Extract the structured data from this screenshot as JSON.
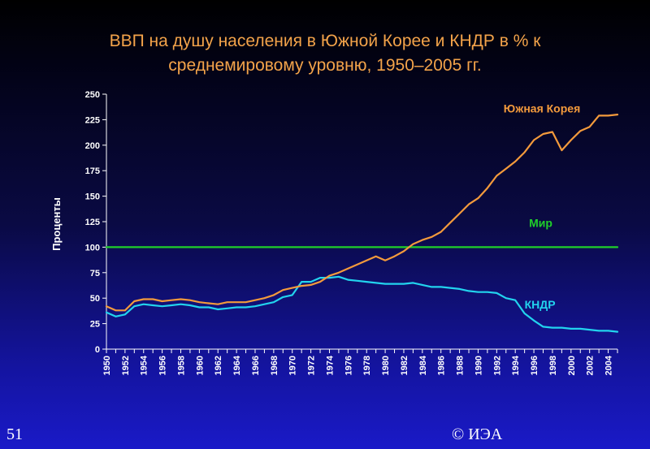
{
  "slide": {
    "title_line1": "ВВП на душу населения в Южной Корее и КНДР в % к",
    "title_line2": "среднемировому уровню, 1950–2005 гг.",
    "page_number": "51",
    "copyright": "© ИЭА"
  },
  "chart_data": {
    "type": "line",
    "title": "ВВП на душу населения в Южной Корее и КНДР в % к среднемировому уровню, 1950–2005 гг.",
    "xlabel": "",
    "ylabel": "Проценты",
    "xlim": [
      1950,
      2005
    ],
    "ylim": [
      0,
      250
    ],
    "yticks": [
      0,
      25,
      50,
      75,
      100,
      125,
      150,
      175,
      200,
      225,
      250
    ],
    "xticks": [
      1950,
      1952,
      1954,
      1956,
      1958,
      1960,
      1962,
      1964,
      1966,
      1968,
      1970,
      1972,
      1974,
      1976,
      1978,
      1980,
      1982,
      1984,
      1986,
      1988,
      1990,
      1992,
      1994,
      1996,
      1998,
      2000,
      2002,
      2004
    ],
    "grid": false,
    "colors": {
      "south_korea": "#f39a3c",
      "north_korea": "#22d3ee",
      "world": "#1fcf2a",
      "axis": "#ffffff",
      "plot_background": "#ffffff"
    },
    "series": [
      {
        "name": "Южная Корея",
        "color": "#f39a3c",
        "x": [
          1950,
          1951,
          1952,
          1953,
          1954,
          1955,
          1956,
          1957,
          1958,
          1959,
          1960,
          1961,
          1962,
          1963,
          1964,
          1965,
          1966,
          1967,
          1968,
          1969,
          1970,
          1971,
          1972,
          1973,
          1974,
          1975,
          1976,
          1977,
          1978,
          1979,
          1980,
          1981,
          1982,
          1983,
          1984,
          1985,
          1986,
          1987,
          1988,
          1989,
          1990,
          1991,
          1992,
          1993,
          1994,
          1995,
          1996,
          1997,
          1998,
          1999,
          2000,
          2001,
          2002,
          2003,
          2004,
          2005
        ],
        "values": [
          42,
          38,
          38,
          47,
          49,
          49,
          47,
          48,
          49,
          48,
          46,
          45,
          44,
          46,
          46,
          46,
          48,
          50,
          53,
          58,
          60,
          62,
          63,
          66,
          72,
          75,
          79,
          83,
          87,
          91,
          87,
          91,
          96,
          103,
          107,
          110,
          115,
          124,
          133,
          142,
          148,
          158,
          170,
          177,
          184,
          193,
          205,
          211,
          213,
          195,
          205,
          214,
          218,
          229,
          229,
          230
        ]
      },
      {
        "name": "КНДР",
        "color": "#22d3ee",
        "x": [
          1950,
          1951,
          1952,
          1953,
          1954,
          1955,
          1956,
          1957,
          1958,
          1959,
          1960,
          1961,
          1962,
          1963,
          1964,
          1965,
          1966,
          1967,
          1968,
          1969,
          1970,
          1971,
          1972,
          1973,
          1974,
          1975,
          1976,
          1977,
          1978,
          1979,
          1980,
          1981,
          1982,
          1983,
          1984,
          1985,
          1986,
          1987,
          1988,
          1989,
          1990,
          1991,
          1992,
          1993,
          1994,
          1995,
          1996,
          1997,
          1998,
          1999,
          2000,
          2001,
          2002,
          2003,
          2004,
          2005
        ],
        "values": [
          36,
          32,
          34,
          42,
          44,
          43,
          42,
          43,
          44,
          43,
          41,
          41,
          39,
          40,
          41,
          41,
          42,
          44,
          46,
          51,
          53,
          66,
          66,
          70,
          70,
          71,
          68,
          67,
          66,
          65,
          64,
          64,
          64,
          65,
          63,
          61,
          61,
          60,
          59,
          57,
          56,
          56,
          55,
          50,
          48,
          35,
          28,
          22,
          21,
          21,
          20,
          20,
          19,
          18,
          18,
          17
        ]
      },
      {
        "name": "Мир",
        "color": "#1fcf2a",
        "x": [
          1950,
          2005
        ],
        "values": [
          100,
          100
        ]
      }
    ]
  }
}
